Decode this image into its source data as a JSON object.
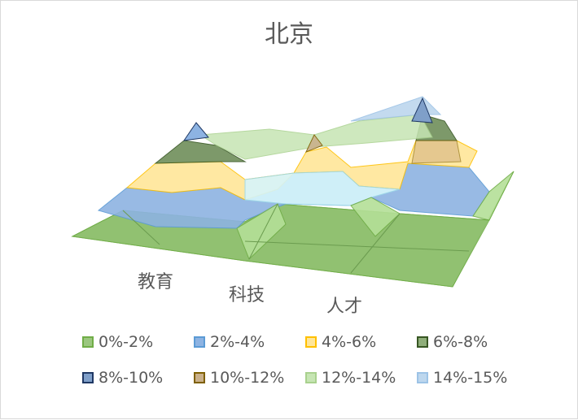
{
  "chart_data": {
    "type": "surface",
    "title": "北京",
    "categories": [
      "教育",
      "科技",
      "人才"
    ],
    "legend_position": "bottom",
    "series": [
      {
        "name": "0%-2%",
        "fill": "#9bc77f",
        "stroke": "#70ad47"
      },
      {
        "name": "2%-4%",
        "fill": "#8db3e2",
        "stroke": "#5b9bd5"
      },
      {
        "name": "4%-6%",
        "fill": "#ffe699",
        "stroke": "#ffc000"
      },
      {
        "name": "6%-8%",
        "fill": "#8fae7a",
        "stroke": "#375623"
      },
      {
        "name": "8%-10%",
        "fill": "#7f9fc9",
        "stroke": "#1f3864"
      },
      {
        "name": "10%-12%",
        "fill": "#c9b08a",
        "stroke": "#7f6000"
      },
      {
        "name": "12%-14%",
        "fill": "#c6e5b3",
        "stroke": "#a9d18e"
      },
      {
        "name": "14%-15%",
        "fill": "#bdd7ee",
        "stroke": "#9dc3e6"
      }
    ]
  }
}
